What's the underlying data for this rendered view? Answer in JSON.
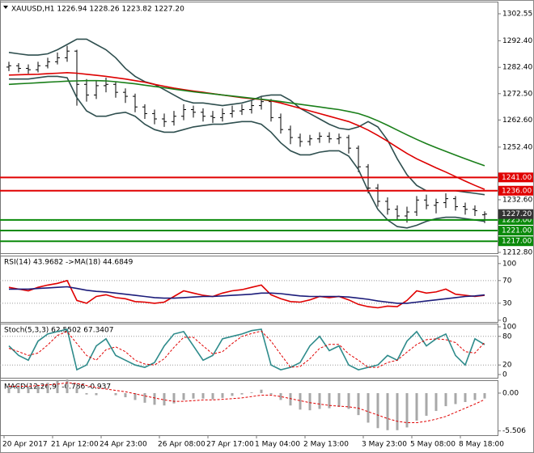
{
  "chart_data": [
    {
      "type": "ohlc",
      "title": "XAUUSD,H1  1226.94 1228.26 1223.82 1227.20",
      "x": [
        "20 Apr 2017",
        null,
        null,
        null,
        null,
        "21 Apr 12:00",
        null,
        null,
        null,
        null,
        "24 Apr 23:00",
        null,
        null,
        null,
        null,
        null,
        "26 Apr 08:00",
        null,
        null,
        null,
        null,
        "27 Apr 17:00",
        null,
        null,
        null,
        null,
        "1 May 04:00",
        null,
        null,
        null,
        null,
        "2 May 13:00",
        null,
        null,
        null,
        null,
        null,
        "3 May 23:00",
        null,
        null,
        null,
        null,
        "5 May 08:00",
        null,
        null,
        null,
        null,
        "8 May 18:00",
        null,
        null
      ],
      "open": [
        1282.5,
        1283.0,
        1282.0,
        1281.5,
        1283.0,
        1284.5,
        1286.0,
        1288.5,
        1276.0,
        1272.0,
        1275.5,
        1276.0,
        1273.0,
        1271.5,
        1267.5,
        1265.0,
        1263.0,
        1262.0,
        1264.0,
        1266.5,
        1265.5,
        1264.0,
        1263.5,
        1265.0,
        1266.0,
        1266.5,
        1268.0,
        1269.5,
        1263.5,
        1259.0,
        1256.0,
        1254.5,
        1255.5,
        1256.5,
        1255.5,
        1256.0,
        1252.0,
        1245.0,
        1237.0,
        1232.0,
        1229.0,
        1226.5,
        1228.0,
        1232.5,
        1230.5,
        1231.5,
        1233.0,
        1230.0,
        1229.0,
        1226.94
      ],
      "high": [
        1284.5,
        1284.0,
        1283.5,
        1284.5,
        1286.0,
        1288.0,
        1290.5,
        1289.0,
        1278.0,
        1277.5,
        1278.5,
        1277.0,
        1274.5,
        1272.5,
        1268.5,
        1266.5,
        1265.0,
        1266.0,
        1268.5,
        1268.0,
        1267.0,
        1266.0,
        1267.0,
        1268.0,
        1268.5,
        1270.0,
        1271.5,
        1270.5,
        1265.0,
        1260.5,
        1257.5,
        1257.0,
        1258.0,
        1258.0,
        1257.5,
        1257.0,
        1253.0,
        1246.0,
        1238.5,
        1233.5,
        1230.5,
        1230.0,
        1234.0,
        1234.5,
        1233.0,
        1235.0,
        1234.0,
        1231.5,
        1230.5,
        1228.26
      ],
      "low": [
        1281.0,
        1280.5,
        1280.0,
        1280.5,
        1282.0,
        1283.5,
        1284.5,
        1268.0,
        1269.5,
        1270.5,
        1273.0,
        1271.0,
        1269.0,
        1265.5,
        1263.0,
        1261.0,
        1260.0,
        1260.5,
        1262.5,
        1263.5,
        1262.0,
        1261.5,
        1262.0,
        1263.5,
        1264.5,
        1265.0,
        1266.5,
        1262.0,
        1257.5,
        1253.5,
        1252.5,
        1253.0,
        1254.0,
        1254.0,
        1253.5,
        1250.0,
        1243.0,
        1235.0,
        1230.0,
        1227.0,
        1225.0,
        1224.0,
        1226.5,
        1229.0,
        1227.5,
        1229.5,
        1228.5,
        1227.0,
        1226.5,
        1223.82
      ],
      "close": [
        1283.0,
        1282.0,
        1281.5,
        1283.0,
        1284.5,
        1286.0,
        1288.5,
        1276.0,
        1272.0,
        1275.5,
        1276.0,
        1273.0,
        1271.5,
        1267.5,
        1265.0,
        1263.0,
        1262.0,
        1264.0,
        1266.5,
        1265.5,
        1264.0,
        1263.5,
        1265.0,
        1266.0,
        1266.5,
        1268.0,
        1269.5,
        1263.5,
        1259.0,
        1256.0,
        1254.5,
        1255.5,
        1256.5,
        1255.5,
        1256.0,
        1252.0,
        1245.0,
        1237.0,
        1232.0,
        1229.0,
        1226.5,
        1228.0,
        1232.5,
        1230.5,
        1231.5,
        1233.0,
        1230.0,
        1229.0,
        1228.5,
        1227.2
      ],
      "color": "#000000",
      "series": [
        {
          "color": "#2f4f4f",
          "values": [
            1288,
            1287.5,
            1287,
            1287,
            1287.5,
            1289,
            1291,
            1293,
            1293,
            1291,
            1289,
            1286,
            1282,
            1279,
            1277,
            1276,
            1274,
            1272,
            1270,
            1269,
            1269,
            1268.5,
            1268,
            1268.5,
            1269,
            1270,
            1271.5,
            1272,
            1272,
            1270,
            1267,
            1265,
            1263,
            1261,
            1259.5,
            1259,
            1260,
            1262,
            1260,
            1255,
            1248,
            1242,
            1238,
            1236,
            1236,
            1236,
            1236,
            1235.5,
            1235,
            1234.5
          ]
        },
        {
          "color": "#2f4f4f",
          "values": [
            1278,
            1278,
            1278,
            1278.5,
            1279,
            1279,
            1278.5,
            1271,
            1266,
            1264,
            1264,
            1265,
            1265.5,
            1264,
            1261,
            1259,
            1258,
            1258,
            1259,
            1260,
            1260.5,
            1261,
            1261,
            1261.5,
            1262,
            1262,
            1261,
            1258,
            1254,
            1251,
            1249.5,
            1249.5,
            1250.5,
            1251,
            1251,
            1249,
            1244,
            1236,
            1229,
            1225,
            1222.5,
            1222,
            1223,
            1224.5,
            1225.5,
            1226,
            1226,
            1225.5,
            1225,
            1224.5
          ]
        },
        {
          "color": "#dd0000",
          "values": [
            1279.5,
            1279.6,
            1279.7,
            1279.8,
            1280.0,
            1280.2,
            1280.4,
            1280.2,
            1279.8,
            1279.4,
            1279.0,
            1278.5,
            1278.0,
            1277.4,
            1276.8,
            1276.0,
            1275.3,
            1274.6,
            1274.0,
            1273.5,
            1273.0,
            1272.5,
            1272.0,
            1271.5,
            1271.0,
            1270.6,
            1270.3,
            1269.8,
            1269.0,
            1268.0,
            1267.0,
            1266.0,
            1265.0,
            1264.0,
            1263.0,
            1262.0,
            1260.5,
            1258.8,
            1256.8,
            1254.6,
            1252.3,
            1250.0,
            1248.0,
            1246.3,
            1244.6,
            1243.0,
            1241.3,
            1239.6,
            1238.0,
            1236.5
          ]
        },
        {
          "color": "#1a7f1a",
          "values": [
            1276.0,
            1276.2,
            1276.4,
            1276.6,
            1276.8,
            1277.0,
            1277.2,
            1277.3,
            1277.4,
            1277.4,
            1277.3,
            1277.0,
            1276.6,
            1276.2,
            1275.7,
            1275.2,
            1274.7,
            1274.2,
            1273.7,
            1273.2,
            1272.8,
            1272.4,
            1272.0,
            1271.6,
            1271.2,
            1270.8,
            1270.4,
            1270.0,
            1269.5,
            1269.0,
            1268.5,
            1268.0,
            1267.5,
            1267.0,
            1266.5,
            1265.8,
            1265.0,
            1263.8,
            1262.3,
            1260.6,
            1258.8,
            1257.0,
            1255.3,
            1253.7,
            1252.2,
            1250.8,
            1249.4,
            1248.0,
            1246.7,
            1245.4
          ]
        }
      ],
      "levels": [
        {
          "value": 1241,
          "label": "1241.00",
          "color": "#e00000"
        },
        {
          "value": 1236,
          "label": "1236.00",
          "color": "#e00000"
        },
        {
          "value": 1225,
          "label": "1225.00",
          "color": "#0a8a0a"
        },
        {
          "value": 1221,
          "label": "1221.00",
          "color": "#0a8a0a"
        },
        {
          "value": 1217,
          "label": "1217.00",
          "color": "#0a8a0a"
        }
      ],
      "price": 1227.2,
      "price_label": "1227.20",
      "ylim": [
        1212.5,
        1306.81
      ],
      "yticks": [
        {
          "value": 1302.55,
          "label": "1302.55"
        },
        {
          "value": 1292.4,
          "label": "1292.40"
        },
        {
          "value": 1282.4,
          "label": "1282.40"
        },
        {
          "value": 1272.5,
          "label": "1272.50"
        },
        {
          "value": 1262.6,
          "label": "1262.60"
        },
        {
          "value": 1252.4,
          "label": "1252.40"
        },
        {
          "value": 1232.6,
          "label": "1232.60"
        },
        {
          "value": 1212.8,
          "label": "1212.80"
        }
      ]
    },
    {
      "type": "line",
      "title": "RSI(14) 43.9682 ->MA(18) 44.6849",
      "series": [
        {
          "color": "#e00000",
          "values": [
            58,
            55,
            52,
            58,
            62,
            65,
            70,
            35,
            30,
            42,
            45,
            40,
            38,
            33,
            32,
            30,
            32,
            42,
            52,
            48,
            44,
            42,
            48,
            52,
            54,
            58,
            62,
            45,
            38,
            33,
            32,
            36,
            42,
            40,
            42,
            36,
            28,
            24,
            22,
            25,
            24,
            35,
            52,
            48,
            50,
            55,
            46,
            44,
            42,
            44
          ]
        },
        {
          "color": "#1c1c7a",
          "values": [
            55,
            55,
            55,
            56,
            57,
            58,
            59,
            56,
            53,
            51,
            50,
            48,
            46,
            44,
            42,
            40,
            39,
            39,
            40,
            41,
            42,
            42,
            43,
            44,
            45,
            46,
            48,
            48,
            47,
            45,
            43,
            42,
            42,
            42,
            42,
            41,
            39,
            37,
            34,
            32,
            30,
            30,
            32,
            34,
            36,
            38,
            40,
            42,
            43,
            44.7
          ]
        }
      ],
      "levels": [
        70,
        30
      ],
      "ylim": [
        -3,
        114
      ],
      "yticks": [
        100,
        70,
        30,
        0
      ]
    },
    {
      "type": "line",
      "title": "Stoch(5,3,3) 62.5502 67.3407",
      "series": [
        {
          "color": "#2e8b8b",
          "values": [
            60,
            40,
            30,
            70,
            85,
            90,
            95,
            10,
            20,
            60,
            75,
            40,
            30,
            20,
            15,
            25,
            60,
            85,
            90,
            60,
            30,
            40,
            75,
            80,
            85,
            92,
            95,
            20,
            10,
            15,
            25,
            60,
            80,
            50,
            60,
            20,
            10,
            15,
            20,
            40,
            30,
            70,
            90,
            60,
            75,
            85,
            40,
            20,
            75,
            62.55
          ]
        },
        {
          "color": "#e00000",
          "style": "dashed",
          "values": [
            55,
            48,
            40,
            45,
            62,
            82,
            90,
            65,
            40,
            30,
            52,
            58,
            48,
            30,
            22,
            20,
            33,
            57,
            78,
            78,
            60,
            43,
            48,
            65,
            80,
            86,
            91,
            70,
            42,
            15,
            17,
            33,
            55,
            63,
            63,
            43,
            30,
            15,
            15,
            25,
            30,
            47,
            63,
            73,
            75,
            73,
            67,
            48,
            45,
            67.34
          ]
        }
      ],
      "levels": [
        80,
        20
      ],
      "ylim": [
        -6.8,
        106.8
      ],
      "yticks": [
        100,
        80,
        20,
        0
      ]
    },
    {
      "type": "bar",
      "title": "MACD(12,26,9) -0.786 -0.937",
      "color": "#a8a8a8",
      "values": [
        1.2,
        1.1,
        1.0,
        1.2,
        1.5,
        1.8,
        2.0,
        0.8,
        -0.2,
        -0.3,
        0.0,
        -0.3,
        -0.6,
        -1.0,
        -1.4,
        -1.7,
        -1.8,
        -1.5,
        -1.0,
        -0.8,
        -0.8,
        -0.9,
        -0.7,
        -0.4,
        -0.2,
        0.1,
        0.5,
        -0.2,
        -1.0,
        -1.8,
        -2.4,
        -2.5,
        -2.3,
        -2.2,
        -2.0,
        -2.3,
        -3.2,
        -4.3,
        -5.1,
        -5.4,
        -5.4,
        -5.0,
        -4.0,
        -3.3,
        -2.6,
        -1.9,
        -1.6,
        -1.3,
        -1.0,
        -0.786
      ],
      "series": [
        {
          "color": "#e00000",
          "style": "dashed",
          "values": [
            1.0,
            1.0,
            1.0,
            1.1,
            1.2,
            1.3,
            1.5,
            1.4,
            1.1,
            0.8,
            0.6,
            0.4,
            0.2,
            -0.1,
            -0.4,
            -0.7,
            -1.0,
            -1.2,
            -1.2,
            -1.1,
            -1.0,
            -1.0,
            -0.9,
            -0.8,
            -0.7,
            -0.5,
            -0.3,
            -0.3,
            -0.5,
            -0.8,
            -1.1,
            -1.4,
            -1.6,
            -1.8,
            -1.9,
            -2.0,
            -2.2,
            -2.7,
            -3.2,
            -3.7,
            -4.1,
            -4.3,
            -4.3,
            -4.1,
            -3.8,
            -3.4,
            -2.8,
            -2.2,
            -1.6,
            -0.937
          ]
        }
      ],
      "ylim": [
        -6.13,
        1.88
      ],
      "yticks": [
        {
          "value": 0,
          "label": "0.00"
        },
        -5.506
      ]
    }
  ]
}
